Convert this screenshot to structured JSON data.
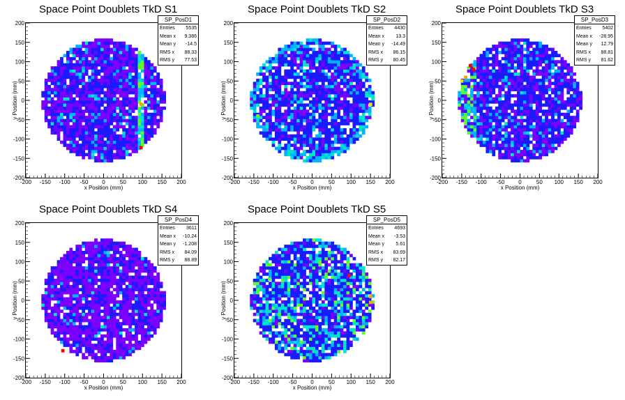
{
  "chart_data": [
    {
      "type": "heatmap",
      "title": "Space Point Doublets TkD S1",
      "xlabel": "x Position (mm)",
      "ylabel": "y Position (mm)",
      "xlim": [
        -200,
        200
      ],
      "ylim": [
        -200,
        200
      ],
      "xticks": [
        -200,
        -150,
        -100,
        -50,
        0,
        50,
        100,
        150,
        200
      ],
      "yticks": [
        -200,
        -150,
        -100,
        -50,
        0,
        50,
        100,
        150,
        200
      ],
      "stats": {
        "name": "SP_PosD1",
        "rows": [
          [
            "Entries",
            "5535"
          ],
          [
            "Mean x",
            "9.386"
          ],
          [
            "Mean y",
            "-14.5"
          ],
          [
            "RMS x",
            "88.33"
          ],
          [
            "RMS y",
            "77.53"
          ]
        ]
      }
    },
    {
      "type": "heatmap",
      "title": "Space Point Doublets TkD S2",
      "xlabel": "x Position (mm)",
      "ylabel": "y Position (mm)",
      "xlim": [
        -200,
        200
      ],
      "ylim": [
        -200,
        200
      ],
      "xticks": [
        -200,
        -150,
        -100,
        -50,
        0,
        50,
        100,
        150,
        200
      ],
      "yticks": [
        -200,
        -150,
        -100,
        -50,
        0,
        50,
        100,
        150,
        200
      ],
      "stats": {
        "name": "SP_PosD2",
        "rows": [
          [
            "Entries",
            "4430"
          ],
          [
            "Mean x",
            "13.3"
          ],
          [
            "Mean y",
            "-14.49"
          ],
          [
            "RMS x",
            "86.15"
          ],
          [
            "RMS y",
            "80.45"
          ]
        ]
      }
    },
    {
      "type": "heatmap",
      "title": "Space Point Doublets TkD S3",
      "xlabel": "x Position (mm)",
      "ylabel": "y Position (mm)",
      "xlim": [
        -200,
        200
      ],
      "ylim": [
        -200,
        200
      ],
      "xticks": [
        -200,
        -150,
        -100,
        -50,
        0,
        50,
        100,
        150,
        200
      ],
      "yticks": [
        -200,
        -150,
        -100,
        -50,
        0,
        50,
        100,
        150,
        200
      ],
      "stats": {
        "name": "SP_PosD3",
        "rows": [
          [
            "Entries",
            "5402"
          ],
          [
            "Mean x",
            "-28.95"
          ],
          [
            "Mean y",
            "12.79"
          ],
          [
            "RMS x",
            "88.81"
          ],
          [
            "RMS y",
            "81.62"
          ]
        ]
      }
    },
    {
      "type": "heatmap",
      "title": "Space Point Doublets TkD S4",
      "xlabel": "x Position (mm)",
      "ylabel": "y Position (mm)",
      "xlim": [
        -200,
        200
      ],
      "ylim": [
        -200,
        200
      ],
      "xticks": [
        -200,
        -150,
        -100,
        -50,
        0,
        50,
        100,
        150,
        200
      ],
      "yticks": [
        -200,
        -150,
        -100,
        -50,
        0,
        50,
        100,
        150,
        200
      ],
      "stats": {
        "name": "SP_PosD4",
        "rows": [
          [
            "Entries",
            "3611"
          ],
          [
            "Mean x",
            "-10.24"
          ],
          [
            "Mean y",
            "-1.208"
          ],
          [
            "RMS x",
            "84.09"
          ],
          [
            "RMS y",
            "88.89"
          ]
        ]
      }
    },
    {
      "type": "heatmap",
      "title": "Space Point Doublets TkD S5",
      "xlabel": "x Position (mm)",
      "ylabel": "y Position (mm)",
      "xlim": [
        -200,
        200
      ],
      "ylim": [
        -200,
        200
      ],
      "xticks": [
        -200,
        -150,
        -100,
        -50,
        0,
        50,
        100,
        150,
        200
      ],
      "yticks": [
        -200,
        -150,
        -100,
        -50,
        0,
        50,
        100,
        150,
        200
      ],
      "stats": {
        "name": "SP_PosD5",
        "rows": [
          [
            "Entries",
            "4693"
          ],
          [
            "Mean x",
            "-3.53"
          ],
          [
            "Mean y",
            "5.61"
          ],
          [
            "RMS x",
            "83.69"
          ],
          [
            "RMS y",
            "82.17"
          ]
        ]
      }
    }
  ],
  "detector_radius_mm": 160,
  "bin_width_mm": 8,
  "colors": {
    "purple": "#7b00ff",
    "blue": "#1a1aff",
    "cyan": "#00b4ff",
    "teal": "#00e6c8",
    "green": "#5cff2a",
    "yellow": "#e6e600",
    "orange": "#ffa000",
    "red": "#ff0000"
  }
}
